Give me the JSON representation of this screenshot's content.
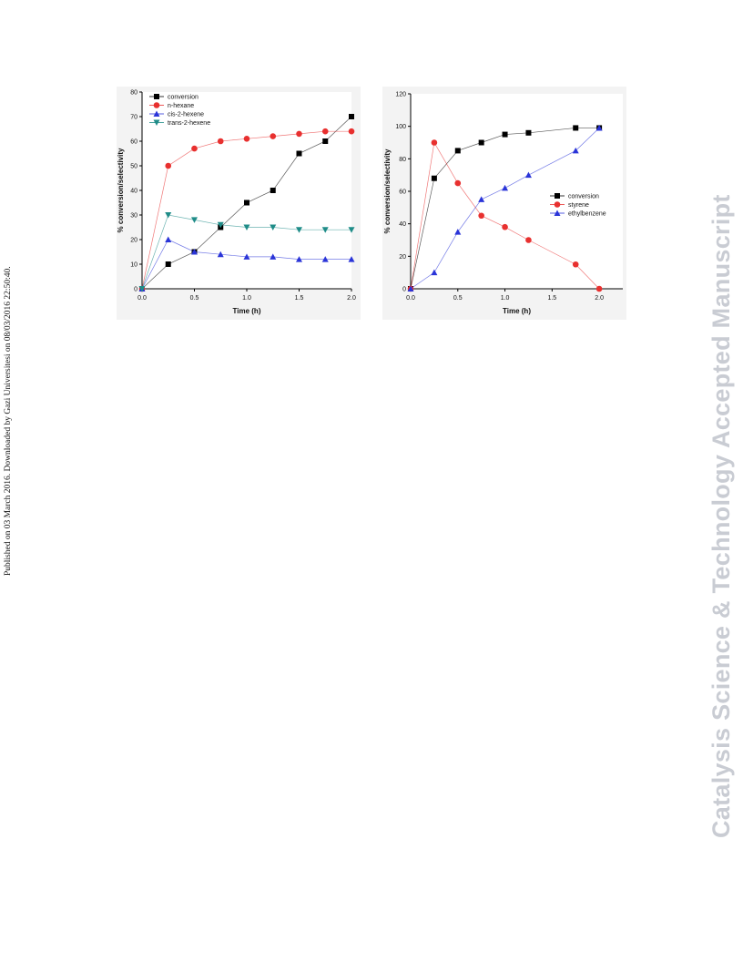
{
  "side_note": "Published on 03 March 2016. Downloaded by Gazi Universitesi on 08/03/2016 22:50:40.",
  "watermark": "Catalysis Science & Technology Accepted Manuscript",
  "chart_data": [
    {
      "type": "line",
      "xlabel": "Time (h)",
      "ylabel": "% conversion/selectivity",
      "xlim": [
        0,
        2.0
      ],
      "ylim": [
        0,
        80
      ],
      "xticks": [
        "0.0",
        "0.5",
        "1.0",
        "1.5",
        "2.0"
      ],
      "yticks": [
        "0",
        "10",
        "20",
        "30",
        "40",
        "50",
        "60",
        "70",
        "80"
      ],
      "legend_position": "top-left",
      "grid": false,
      "x": [
        0,
        0.25,
        0.5,
        0.75,
        1.0,
        1.25,
        1.5,
        1.75,
        2.0
      ],
      "series": [
        {
          "name": "conversion",
          "color": "#000000",
          "marker": "square",
          "values": [
            0,
            10,
            15,
            25,
            35,
            40,
            55,
            60,
            70
          ]
        },
        {
          "name": "n-hexane",
          "color": "#e8302f",
          "marker": "circle",
          "values": [
            0,
            50,
            57,
            60,
            61,
            62,
            63,
            64,
            64
          ]
        },
        {
          "name": "cis-2-hexene",
          "color": "#2a34d8",
          "marker": "triangle-up",
          "values": [
            0,
            20,
            15,
            14,
            13,
            13,
            12,
            12,
            12
          ]
        },
        {
          "name": "trans-2-hexene",
          "color": "#1f8c88",
          "marker": "triangle-down",
          "values": [
            0,
            30,
            28,
            26,
            25,
            25,
            24,
            24,
            24
          ]
        }
      ]
    },
    {
      "type": "line",
      "xlabel": "Time (h)",
      "ylabel": "% conversion/selectivity",
      "xlim": [
        0,
        2.25
      ],
      "ylim": [
        0,
        120
      ],
      "xticks": [
        "0.0",
        "0.5",
        "1.0",
        "1.5",
        "2.0"
      ],
      "yticks": [
        "0",
        "20",
        "40",
        "60",
        "80",
        "100",
        "120"
      ],
      "legend_position": "center-right",
      "grid": false,
      "series": [
        {
          "name": "conversion",
          "color": "#000000",
          "marker": "square",
          "x": [
            0,
            0.25,
            0.5,
            0.75,
            1.0,
            1.25,
            1.75,
            2.0
          ],
          "values": [
            0,
            68,
            85,
            90,
            95,
            96,
            99,
            99
          ]
        },
        {
          "name": "styrene",
          "color": "#e8302f",
          "marker": "circle",
          "x": [
            0,
            0.25,
            0.5,
            0.75,
            1.0,
            1.25,
            1.75,
            2.0
          ],
          "values": [
            0,
            90,
            65,
            45,
            38,
            30,
            15,
            0
          ]
        },
        {
          "name": "ethylbenzene",
          "color": "#2a34d8",
          "marker": "triangle-up",
          "x": [
            0,
            0.25,
            0.5,
            0.75,
            1.0,
            1.25,
            1.75,
            2.0
          ],
          "values": [
            0,
            10,
            35,
            55,
            62,
            70,
            85,
            99
          ]
        }
      ]
    }
  ]
}
